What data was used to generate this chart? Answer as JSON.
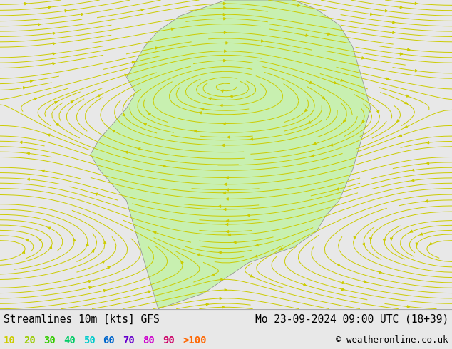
{
  "title_left": "Streamlines 10m [kts] GFS",
  "title_right": "Mo 23-09-2024 09:00 UTC (18+39)",
  "copyright": "© weatheronline.co.uk",
  "legend_values": [
    "10",
    "20",
    "30",
    "40",
    "50",
    "60",
    "70",
    "80",
    "90",
    ">100"
  ],
  "legend_colors": [
    "#cccc00",
    "#99cc00",
    "#33cc00",
    "#00cc66",
    "#00cccc",
    "#0066cc",
    "#6600cc",
    "#cc00cc",
    "#cc0066",
    "#ff6600"
  ],
  "bg_color": "#e8e8e8",
  "ocean_color": "#e8e8ee",
  "land_color": "#c8f0b0",
  "border_color": "#888888",
  "title_fontsize": 10.5,
  "legend_fontsize": 10,
  "copyright_fontsize": 9,
  "figsize": [
    6.34,
    4.9
  ],
  "dpi": 100,
  "map_extent": [
    -175,
    -50,
    15,
    80
  ],
  "stream_color_yellow": "#cccc00",
  "stream_color_green": "#00aa00",
  "stream_linewidth": 0.7
}
